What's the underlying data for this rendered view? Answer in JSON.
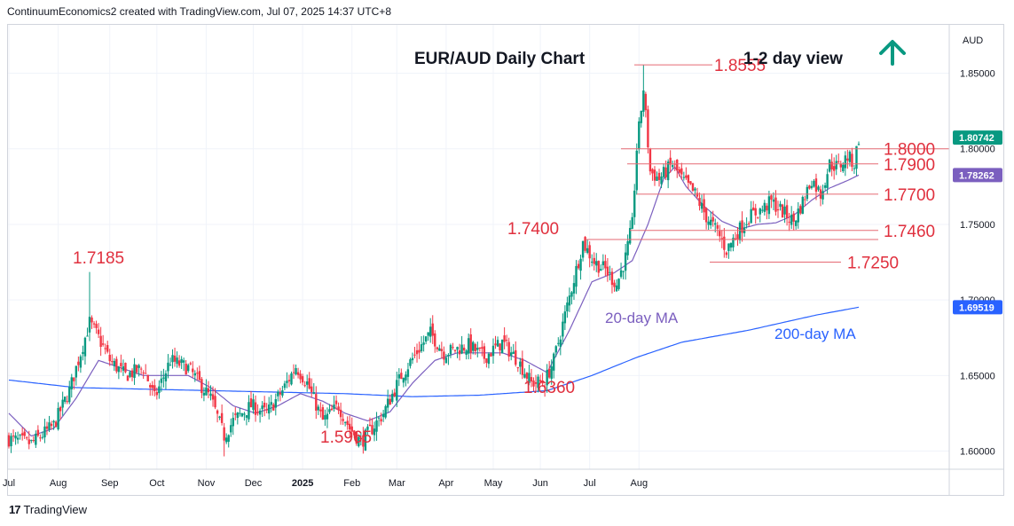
{
  "header": {
    "text": "ContinuumEconomics2 created with TradingView.com, Jul 07, 2025 14:37 UTC+8"
  },
  "brand": {
    "logo": "17",
    "name": "TradingView"
  },
  "colors": {
    "up": "#089981",
    "down": "#f23645",
    "ma20": "#7b5fbf",
    "ma200": "#2962ff",
    "level": "#e0303e",
    "arrow": "#089981",
    "grid": "#f0f3fa"
  },
  "chart_data": {
    "type": "candlestick",
    "title": "EUR/AUD Daily Chart",
    "view": "1-2 day view",
    "view_icon": "up-arrow-icon",
    "currency": "AUD",
    "y_ticks": [
      "1.85000",
      "1.80000",
      "1.75000",
      "1.70000",
      "1.65000",
      "1.60000"
    ],
    "y_range": [
      1.588,
      1.882
    ],
    "x_ticks": [
      "Jul",
      "Aug",
      "Sep",
      "Oct",
      "Nov",
      "Dec",
      "2025",
      "Feb",
      "Mar",
      "Apr",
      "May",
      "Jun",
      "Jul",
      "Aug"
    ],
    "price_labels": [
      {
        "text": "1.80742",
        "value": 1.80742,
        "color": "#089981"
      },
      {
        "text": "1.78262",
        "value": 1.78262,
        "color": "#7b5fbf"
      },
      {
        "text": "1.69519",
        "value": 1.69519,
        "color": "#2962ff"
      }
    ],
    "levels": [
      {
        "label": "1.8555",
        "value": 1.8555
      },
      {
        "label": "1.8000",
        "value": 1.8
      },
      {
        "label": "1.7900",
        "value": 1.79
      },
      {
        "label": "1.7700",
        "value": 1.77
      },
      {
        "label": "1.7460",
        "value": 1.746
      },
      {
        "label": "1.7400",
        "value": 1.74
      },
      {
        "label": "1.7250",
        "value": 1.725
      }
    ],
    "swing_labels": [
      {
        "text": "1.7185",
        "value": 1.7185
      },
      {
        "text": "1.6360",
        "value": 1.636
      },
      {
        "text": "1.5965",
        "value": 1.5965
      }
    ],
    "series": [
      {
        "name": "20-day MA"
      },
      {
        "name": "200-day MA"
      }
    ],
    "close_path": [
      [
        0,
        1.608
      ],
      [
        10,
        1.605
      ],
      [
        20,
        1.617
      ],
      [
        27,
        1.64
      ],
      [
        32,
        1.665
      ],
      [
        36,
        1.685
      ],
      [
        40,
        1.675
      ],
      [
        45,
        1.66
      ],
      [
        52,
        1.65
      ],
      [
        60,
        1.655
      ],
      [
        65,
        1.635
      ],
      [
        72,
        1.66
      ],
      [
        80,
        1.655
      ],
      [
        90,
        1.635
      ],
      [
        96,
        1.61
      ],
      [
        100,
        1.62
      ],
      [
        108,
        1.63
      ],
      [
        115,
        1.625
      ],
      [
        122,
        1.64
      ],
      [
        128,
        1.656
      ],
      [
        133,
        1.645
      ],
      [
        140,
        1.62
      ],
      [
        147,
        1.63
      ],
      [
        152,
        1.615
      ],
      [
        157,
        1.606
      ],
      [
        162,
        1.615
      ],
      [
        167,
        1.625
      ],
      [
        175,
        1.65
      ],
      [
        184,
        1.67
      ],
      [
        188,
        1.678
      ],
      [
        194,
        1.665
      ],
      [
        205,
        1.67
      ],
      [
        212,
        1.662
      ],
      [
        220,
        1.672
      ],
      [
        227,
        1.66
      ],
      [
        233,
        1.645
      ],
      [
        239,
        1.646
      ],
      [
        243,
        1.66
      ],
      [
        248,
        1.69
      ],
      [
        253,
        1.72
      ],
      [
        256,
        1.738
      ],
      [
        261,
        1.725
      ],
      [
        266,
        1.72
      ],
      [
        271,
        1.71
      ],
      [
        275,
        1.728
      ],
      [
        278,
        1.75
      ],
      [
        280,
        1.8
      ],
      [
        283,
        1.84
      ],
      [
        286,
        1.785
      ],
      [
        290,
        1.78
      ],
      [
        296,
        1.79
      ],
      [
        300,
        1.78
      ],
      [
        306,
        1.77
      ],
      [
        311,
        1.755
      ],
      [
        316,
        1.745
      ],
      [
        320,
        1.733
      ],
      [
        325,
        1.745
      ],
      [
        330,
        1.755
      ],
      [
        336,
        1.76
      ],
      [
        340,
        1.765
      ],
      [
        346,
        1.757
      ],
      [
        350,
        1.752
      ],
      [
        354,
        1.765
      ],
      [
        358,
        1.78
      ],
      [
        362,
        1.77
      ],
      [
        366,
        1.79
      ],
      [
        370,
        1.788
      ],
      [
        374,
        1.795
      ],
      [
        377,
        1.79
      ],
      [
        379,
        1.8074
      ]
    ],
    "ma20_path": [
      [
        0,
        1.625
      ],
      [
        10,
        1.61
      ],
      [
        20,
        1.615
      ],
      [
        30,
        1.635
      ],
      [
        40,
        1.66
      ],
      [
        50,
        1.655
      ],
      [
        60,
        1.65
      ],
      [
        70,
        1.65
      ],
      [
        80,
        1.65
      ],
      [
        90,
        1.642
      ],
      [
        100,
        1.63
      ],
      [
        110,
        1.625
      ],
      [
        120,
        1.63
      ],
      [
        130,
        1.638
      ],
      [
        140,
        1.633
      ],
      [
        150,
        1.625
      ],
      [
        160,
        1.62
      ],
      [
        170,
        1.626
      ],
      [
        180,
        1.645
      ],
      [
        190,
        1.66
      ],
      [
        200,
        1.665
      ],
      [
        210,
        1.665
      ],
      [
        220,
        1.665
      ],
      [
        230,
        1.66
      ],
      [
        240,
        1.652
      ],
      [
        250,
        1.68
      ],
      [
        260,
        1.712
      ],
      [
        270,
        1.718
      ],
      [
        278,
        1.726
      ],
      [
        285,
        1.75
      ],
      [
        292,
        1.78
      ],
      [
        297,
        1.788
      ],
      [
        302,
        1.775
      ],
      [
        310,
        1.762
      ],
      [
        318,
        1.752
      ],
      [
        326,
        1.747
      ],
      [
        334,
        1.75
      ],
      [
        342,
        1.751
      ],
      [
        350,
        1.756
      ],
      [
        358,
        1.766
      ],
      [
        366,
        1.774
      ],
      [
        374,
        1.779
      ],
      [
        379,
        1.7826
      ]
    ],
    "ma200_path": [
      [
        0,
        1.647
      ],
      [
        30,
        1.642
      ],
      [
        60,
        1.641
      ],
      [
        90,
        1.64
      ],
      [
        120,
        1.639
      ],
      [
        150,
        1.638
      ],
      [
        180,
        1.636
      ],
      [
        210,
        1.637
      ],
      [
        240,
        1.64
      ],
      [
        260,
        1.65
      ],
      [
        280,
        1.662
      ],
      [
        300,
        1.672
      ],
      [
        330,
        1.68
      ],
      [
        360,
        1.69
      ],
      [
        379,
        1.6952
      ]
    ]
  }
}
